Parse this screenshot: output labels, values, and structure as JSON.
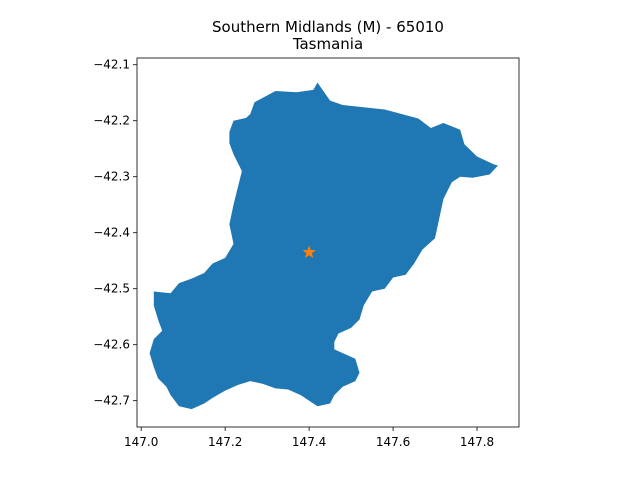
{
  "title_line1": "Southern Midlands (M) - 65010",
  "title_line2": "Tasmania",
  "colors": {
    "region_fill": "#1f77b4",
    "centroid_marker": "#ff7f0e"
  },
  "chart_data": {
    "type": "map",
    "xlim": [
      146.99,
      147.9
    ],
    "ylim": [
      -42.747,
      -42.088
    ],
    "x_ticks": [
      "147.0",
      "147.2",
      "147.4",
      "147.6",
      "147.8"
    ],
    "x_tick_values": [
      147.0,
      147.2,
      147.4,
      147.6,
      147.8
    ],
    "y_ticks": [
      "−42.1",
      "−42.2",
      "−42.3",
      "−42.4",
      "−42.5",
      "−42.6",
      "−42.7"
    ],
    "y_tick_values": [
      -42.1,
      -42.2,
      -42.3,
      -42.4,
      -42.5,
      -42.6,
      -42.7
    ],
    "centroid": {
      "lon": 147.4,
      "lat": -42.435
    },
    "region_boundary": [
      [
        147.27,
        -42.167
      ],
      [
        147.32,
        -42.147
      ],
      [
        147.37,
        -42.149
      ],
      [
        147.41,
        -42.145
      ],
      [
        147.42,
        -42.132
      ],
      [
        147.45,
        -42.164
      ],
      [
        147.48,
        -42.172
      ],
      [
        147.58,
        -42.18
      ],
      [
        147.62,
        -42.188
      ],
      [
        147.66,
        -42.196
      ],
      [
        147.69,
        -42.213
      ],
      [
        147.72,
        -42.204
      ],
      [
        147.76,
        -42.216
      ],
      [
        147.77,
        -42.242
      ],
      [
        147.8,
        -42.264
      ],
      [
        147.84,
        -42.278
      ],
      [
        147.85,
        -42.28
      ],
      [
        147.83,
        -42.296
      ],
      [
        147.79,
        -42.302
      ],
      [
        147.76,
        -42.3
      ],
      [
        147.74,
        -42.31
      ],
      [
        147.72,
        -42.34
      ],
      [
        147.71,
        -42.375
      ],
      [
        147.7,
        -42.41
      ],
      [
        147.67,
        -42.43
      ],
      [
        147.65,
        -42.455
      ],
      [
        147.63,
        -42.475
      ],
      [
        147.6,
        -42.48
      ],
      [
        147.58,
        -42.5
      ],
      [
        147.55,
        -42.505
      ],
      [
        147.53,
        -42.53
      ],
      [
        147.52,
        -42.555
      ],
      [
        147.5,
        -42.57
      ],
      [
        147.47,
        -42.58
      ],
      [
        147.46,
        -42.595
      ],
      [
        147.46,
        -42.608
      ],
      [
        147.48,
        -42.615
      ],
      [
        147.51,
        -42.625
      ],
      [
        147.52,
        -42.65
      ],
      [
        147.51,
        -42.665
      ],
      [
        147.48,
        -42.675
      ],
      [
        147.46,
        -42.69
      ],
      [
        147.45,
        -42.705
      ],
      [
        147.42,
        -42.71
      ],
      [
        147.38,
        -42.69
      ],
      [
        147.35,
        -42.68
      ],
      [
        147.32,
        -42.678
      ],
      [
        147.29,
        -42.67
      ],
      [
        147.26,
        -42.665
      ],
      [
        147.23,
        -42.672
      ],
      [
        147.2,
        -42.682
      ],
      [
        147.17,
        -42.695
      ],
      [
        147.15,
        -42.705
      ],
      [
        147.12,
        -42.715
      ],
      [
        147.09,
        -42.71
      ],
      [
        147.07,
        -42.69
      ],
      [
        147.06,
        -42.675
      ],
      [
        147.04,
        -42.66
      ],
      [
        147.03,
        -42.64
      ],
      [
        147.02,
        -42.615
      ],
      [
        147.03,
        -42.59
      ],
      [
        147.05,
        -42.575
      ],
      [
        147.04,
        -42.555
      ],
      [
        147.03,
        -42.53
      ],
      [
        147.03,
        -42.505
      ],
      [
        147.07,
        -42.508
      ],
      [
        147.09,
        -42.49
      ],
      [
        147.12,
        -42.482
      ],
      [
        147.15,
        -42.472
      ],
      [
        147.17,
        -42.455
      ],
      [
        147.2,
        -42.445
      ],
      [
        147.22,
        -42.42
      ],
      [
        147.21,
        -42.385
      ],
      [
        147.22,
        -42.35
      ],
      [
        147.23,
        -42.32
      ],
      [
        147.24,
        -42.29
      ],
      [
        147.22,
        -42.26
      ],
      [
        147.21,
        -42.24
      ],
      [
        147.21,
        -42.22
      ],
      [
        147.22,
        -42.2
      ],
      [
        147.25,
        -42.195
      ],
      [
        147.26,
        -42.188
      ]
    ]
  }
}
